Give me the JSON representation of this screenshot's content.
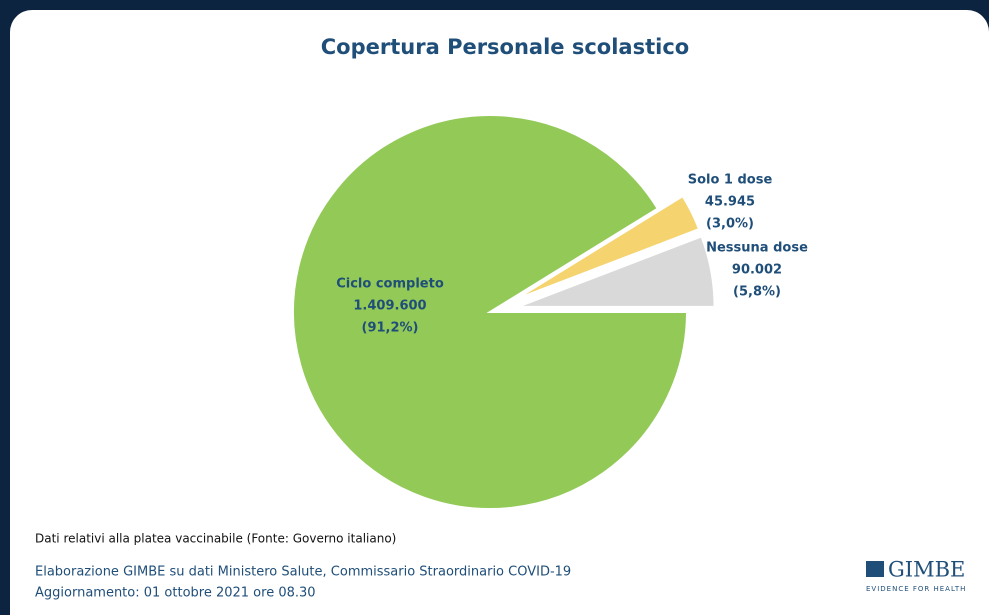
{
  "chart_data": {
    "type": "pie",
    "title": "Copertura Personale scolastico",
    "categories": [
      "Ciclo completo",
      "Solo 1 dose",
      "Nessuna dose"
    ],
    "values": [
      1409600,
      45945,
      90002
    ],
    "value_labels": [
      "1.409.600",
      "45.945",
      "90.002"
    ],
    "percent_labels": [
      "(91,2%)",
      "(3,0%)",
      "(5,8%)"
    ],
    "colors": [
      "#92c957",
      "#f5d36f",
      "#d9d9d9"
    ]
  },
  "note": "Dati relativi alla platea vaccinabile (Fonte: Governo italiano)",
  "source": "Elaborazione GIMBE su dati Ministero Salute, Commissario Straordinario COVID-19",
  "update": "Aggiornamento: 01 ottobre 2021 ore 08.30",
  "logo": {
    "name": "GIMBE",
    "tagline": "EVIDENCE FOR HEALTH"
  }
}
